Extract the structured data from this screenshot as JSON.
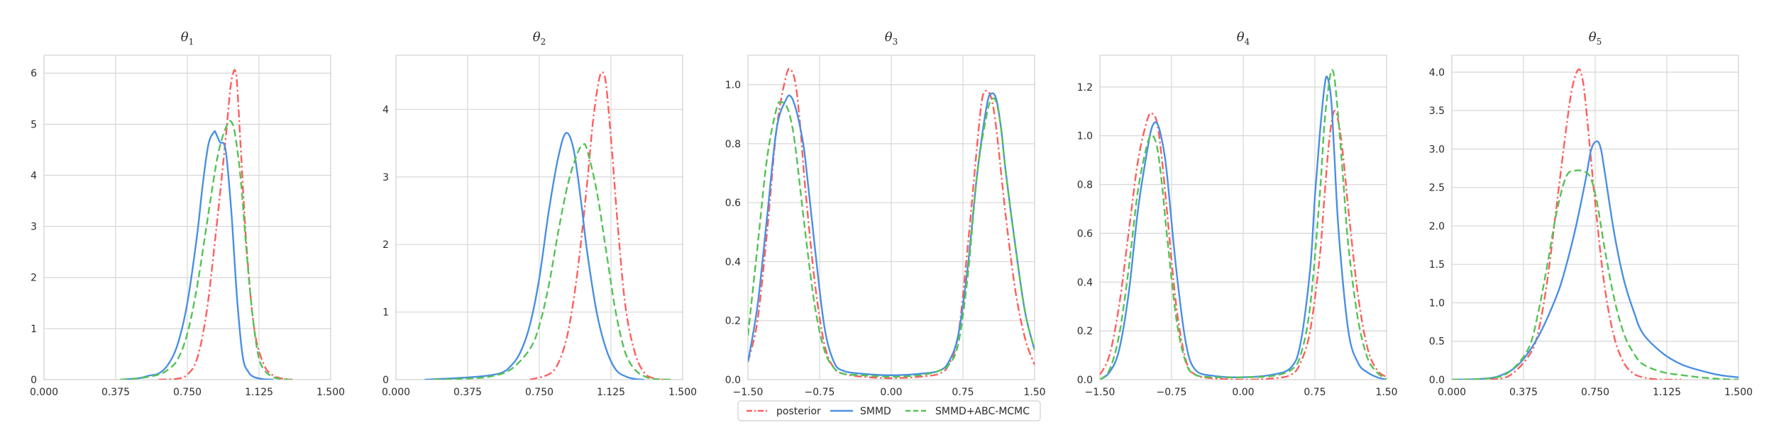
{
  "colors": {
    "posterior": "#ff5e5e",
    "SMMD": "#4a8fe3",
    "SMMD+ABC-MCMC": "#55c255"
  },
  "legend": {
    "placement": "bottom-center",
    "items": [
      {
        "label": "posterior",
        "style": "dash-dot",
        "color_key": "posterior"
      },
      {
        "label": "SMMD",
        "style": "solid",
        "color_key": "SMMD"
      },
      {
        "label": "SMMD+ABC-MCMC",
        "style": "dashed",
        "color_key": "SMMD+ABC-MCMC"
      }
    ]
  },
  "chart_data": [
    {
      "type": "line",
      "title_base": "θ",
      "title_sub": "1",
      "xlim": [
        0.0,
        1.5
      ],
      "ylim": [
        0,
        6.35
      ],
      "xticks": [
        0.0,
        0.375,
        0.75,
        1.125,
        1.5
      ],
      "xtick_labels": [
        "0.000",
        "0.375",
        "0.750",
        "1.125",
        "1.500"
      ],
      "yticks": [
        0,
        1,
        2,
        3,
        4,
        5,
        6
      ],
      "ytick_labels": [
        "0",
        "1",
        "2",
        "3",
        "4",
        "5",
        "6"
      ],
      "grid": true,
      "series": [
        {
          "name": "posterior",
          "style": "dash-dot",
          "color_key": "posterior",
          "x": [
            0.6,
            0.7,
            0.75,
            0.8,
            0.85,
            0.9,
            0.95,
            0.975,
            0.99,
            1.0,
            1.01,
            1.03,
            1.06,
            1.1,
            1.15,
            1.2,
            1.25,
            1.3
          ],
          "y": [
            0.0,
            0.02,
            0.1,
            0.4,
            1.3,
            2.9,
            4.7,
            5.7,
            6.0,
            6.05,
            5.8,
            4.5,
            2.6,
            1.0,
            0.3,
            0.08,
            0.02,
            0.0
          ]
        },
        {
          "name": "SMMD",
          "style": "solid",
          "color_key": "SMMD",
          "x": [
            0.4,
            0.5,
            0.55,
            0.6,
            0.65,
            0.7,
            0.75,
            0.8,
            0.83,
            0.86,
            0.89,
            0.9,
            0.92,
            0.95,
            0.98,
            1.01,
            1.04,
            1.07,
            1.1,
            1.15,
            1.2
          ],
          "y": [
            0.0,
            0.03,
            0.08,
            0.12,
            0.3,
            0.7,
            1.5,
            2.8,
            3.8,
            4.6,
            4.85,
            4.82,
            4.65,
            4.5,
            3.3,
            1.6,
            0.45,
            0.15,
            0.05,
            0.01,
            0.0
          ]
        },
        {
          "name": "SMMD+ABC-MCMC",
          "style": "dashed",
          "color_key": "SMMD+ABC-MCMC",
          "x": [
            0.4,
            0.5,
            0.6,
            0.65,
            0.7,
            0.75,
            0.8,
            0.85,
            0.9,
            0.93,
            0.96,
            0.98,
            1.0,
            1.03,
            1.06,
            1.09,
            1.12,
            1.15,
            1.2,
            1.25,
            1.3
          ],
          "y": [
            0.0,
            0.03,
            0.1,
            0.2,
            0.4,
            0.9,
            1.8,
            3.0,
            4.2,
            4.7,
            5.0,
            5.05,
            4.8,
            3.9,
            2.5,
            1.3,
            0.5,
            0.2,
            0.05,
            0.01,
            0.0
          ]
        }
      ]
    },
    {
      "type": "line",
      "title_base": "θ",
      "title_sub": "2",
      "xlim": [
        0.0,
        1.5
      ],
      "ylim": [
        0,
        4.8
      ],
      "xticks": [
        0.0,
        0.375,
        0.75,
        1.125,
        1.5
      ],
      "xtick_labels": [
        "0.000",
        "0.375",
        "0.750",
        "1.125",
        "1.500"
      ],
      "yticks": [
        0,
        1,
        2,
        3,
        4
      ],
      "ytick_labels": [
        "0",
        "1",
        "2",
        "3",
        "4"
      ],
      "grid": true,
      "series": [
        {
          "name": "posterior",
          "style": "dash-dot",
          "color_key": "posterior",
          "x": [
            0.7,
            0.8,
            0.85,
            0.9,
            0.95,
            1.0,
            1.03,
            1.06,
            1.08,
            1.1,
            1.13,
            1.16,
            1.2,
            1.25,
            1.3,
            1.35,
            1.4
          ],
          "y": [
            0.0,
            0.08,
            0.25,
            0.7,
            1.6,
            2.9,
            3.8,
            4.4,
            4.55,
            4.35,
            3.4,
            2.3,
            1.1,
            0.4,
            0.1,
            0.02,
            0.0
          ]
        },
        {
          "name": "SMMD",
          "style": "solid",
          "color_key": "SMMD",
          "x": [
            0.15,
            0.3,
            0.45,
            0.55,
            0.6,
            0.65,
            0.7,
            0.75,
            0.8,
            0.85,
            0.89,
            0.93,
            0.97,
            1.0,
            1.05,
            1.1,
            1.15,
            1.2,
            1.25,
            1.3
          ],
          "y": [
            0.0,
            0.02,
            0.05,
            0.1,
            0.2,
            0.4,
            0.8,
            1.5,
            2.5,
            3.3,
            3.65,
            3.4,
            2.6,
            1.9,
            1.0,
            0.45,
            0.15,
            0.05,
            0.01,
            0.0
          ]
        },
        {
          "name": "SMMD+ABC-MCMC",
          "style": "dashed",
          "color_key": "SMMD+ABC-MCMC",
          "x": [
            0.2,
            0.4,
            0.5,
            0.6,
            0.7,
            0.75,
            0.8,
            0.85,
            0.9,
            0.95,
            0.98,
            1.0,
            1.05,
            1.1,
            1.15,
            1.2,
            1.25,
            1.3,
            1.35,
            1.45
          ],
          "y": [
            0.0,
            0.02,
            0.05,
            0.15,
            0.45,
            0.8,
            1.4,
            2.2,
            2.9,
            3.35,
            3.48,
            3.4,
            2.8,
            1.9,
            1.0,
            0.4,
            0.15,
            0.05,
            0.01,
            0.0
          ]
        }
      ]
    },
    {
      "type": "line",
      "title_base": "θ",
      "title_sub": "3",
      "xlim": [
        -1.5,
        1.5
      ],
      "ylim": [
        0,
        1.1
      ],
      "xticks": [
        -1.5,
        -0.75,
        0.0,
        0.75,
        1.5
      ],
      "xtick_labels": [
        "−1.50",
        "−0.75",
        "0.00",
        "0.75",
        "1.50"
      ],
      "yticks": [
        0.0,
        0.2,
        0.4,
        0.6,
        0.8,
        1.0
      ],
      "ytick_labels": [
        "0.0",
        "0.2",
        "0.4",
        "0.6",
        "0.8",
        "1.0"
      ],
      "grid": true,
      "series": [
        {
          "name": "posterior",
          "style": "dash-dot",
          "color_key": "posterior",
          "x": [
            -1.5,
            -1.4,
            -1.3,
            -1.2,
            -1.1,
            -1.05,
            -1.0,
            -0.95,
            -0.9,
            -0.8,
            -0.7,
            -0.6,
            -0.5,
            -0.3,
            0.0,
            0.3,
            0.5,
            0.6,
            0.7,
            0.8,
            0.9,
            0.95,
            1.0,
            1.05,
            1.1,
            1.2,
            1.3,
            1.4,
            1.5
          ],
          "y": [
            0.06,
            0.2,
            0.5,
            0.85,
            1.03,
            1.05,
            1.0,
            0.85,
            0.65,
            0.33,
            0.12,
            0.04,
            0.02,
            0.01,
            0.005,
            0.01,
            0.02,
            0.05,
            0.15,
            0.45,
            0.8,
            0.95,
            0.98,
            0.95,
            0.85,
            0.55,
            0.3,
            0.14,
            0.05
          ]
        },
        {
          "name": "SMMD",
          "style": "solid",
          "color_key": "SMMD",
          "x": [
            -1.5,
            -1.4,
            -1.3,
            -1.2,
            -1.1,
            -1.05,
            -1.0,
            -0.95,
            -0.9,
            -0.8,
            -0.7,
            -0.6,
            -0.5,
            -0.3,
            0.0,
            0.3,
            0.5,
            0.6,
            0.7,
            0.8,
            0.9,
            1.0,
            1.05,
            1.1,
            1.15,
            1.2,
            1.3,
            1.4,
            1.5
          ],
          "y": [
            0.06,
            0.25,
            0.55,
            0.85,
            0.95,
            0.96,
            0.92,
            0.85,
            0.75,
            0.45,
            0.18,
            0.06,
            0.03,
            0.02,
            0.015,
            0.02,
            0.03,
            0.06,
            0.15,
            0.38,
            0.7,
            0.93,
            0.97,
            0.95,
            0.85,
            0.7,
            0.45,
            0.23,
            0.1
          ]
        },
        {
          "name": "SMMD+ABC-MCMC",
          "style": "dashed",
          "color_key": "SMMD+ABC-MCMC",
          "x": [
            -1.5,
            -1.4,
            -1.3,
            -1.2,
            -1.15,
            -1.1,
            -1.05,
            -1.0,
            -0.9,
            -0.8,
            -0.7,
            -0.6,
            -0.5,
            -0.3,
            0.0,
            0.3,
            0.5,
            0.6,
            0.7,
            0.8,
            0.9,
            1.0,
            1.05,
            1.1,
            1.15,
            1.2,
            1.3,
            1.4,
            1.5
          ],
          "y": [
            0.15,
            0.45,
            0.75,
            0.92,
            0.94,
            0.93,
            0.88,
            0.78,
            0.5,
            0.25,
            0.1,
            0.04,
            0.02,
            0.015,
            0.01,
            0.015,
            0.03,
            0.05,
            0.12,
            0.35,
            0.7,
            0.9,
            0.95,
            0.94,
            0.85,
            0.7,
            0.45,
            0.23,
            0.1
          ]
        }
      ]
    },
    {
      "type": "line",
      "title_base": "θ",
      "title_sub": "4",
      "xlim": [
        -1.5,
        1.5
      ],
      "ylim": [
        0,
        1.33
      ],
      "xticks": [
        -1.5,
        -0.75,
        0.0,
        0.75,
        1.5
      ],
      "xtick_labels": [
        "−1.50",
        "−0.75",
        "0.00",
        "0.75",
        "1.50"
      ],
      "yticks": [
        0.0,
        0.2,
        0.4,
        0.6,
        0.8,
        1.0,
        1.2
      ],
      "ytick_labels": [
        "0.0",
        "0.2",
        "0.4",
        "0.6",
        "0.8",
        "1.0",
        "1.2"
      ],
      "grid": true,
      "series": [
        {
          "name": "posterior",
          "style": "dash-dot",
          "color_key": "posterior",
          "x": [
            -1.5,
            -1.4,
            -1.3,
            -1.2,
            -1.1,
            -1.0,
            -0.95,
            -0.9,
            -0.85,
            -0.8,
            -0.7,
            -0.6,
            -0.5,
            -0.3,
            0.0,
            0.3,
            0.5,
            0.6,
            0.7,
            0.8,
            0.85,
            0.9,
            0.95,
            1.0,
            1.05,
            1.1,
            1.2,
            1.3,
            1.4,
            1.5
          ],
          "y": [
            0.02,
            0.1,
            0.3,
            0.6,
            0.9,
            1.07,
            1.09,
            1.05,
            0.9,
            0.7,
            0.3,
            0.08,
            0.02,
            0.005,
            0.0,
            0.005,
            0.02,
            0.07,
            0.2,
            0.5,
            0.75,
            0.98,
            1.1,
            1.05,
            0.9,
            0.7,
            0.35,
            0.13,
            0.04,
            0.01
          ]
        },
        {
          "name": "SMMD",
          "style": "solid",
          "color_key": "SMMD",
          "x": [
            -1.5,
            -1.4,
            -1.3,
            -1.2,
            -1.1,
            -1.0,
            -0.95,
            -0.9,
            -0.85,
            -0.8,
            -0.7,
            -0.6,
            -0.5,
            -0.3,
            0.0,
            0.3,
            0.5,
            0.6,
            0.7,
            0.75,
            0.8,
            0.85,
            0.88,
            0.92,
            0.95,
            1.0,
            1.1,
            1.2,
            1.3,
            1.4,
            1.5
          ],
          "y": [
            0.0,
            0.03,
            0.12,
            0.35,
            0.7,
            0.95,
            1.04,
            1.05,
            0.98,
            0.85,
            0.45,
            0.15,
            0.04,
            0.015,
            0.01,
            0.02,
            0.05,
            0.15,
            0.45,
            0.75,
            1.0,
            1.2,
            1.24,
            1.15,
            0.95,
            0.6,
            0.2,
            0.07,
            0.03,
            0.01,
            0.0
          ]
        },
        {
          "name": "SMMD+ABC-MCMC",
          "style": "dashed",
          "color_key": "SMMD+ABC-MCMC",
          "x": [
            -1.5,
            -1.4,
            -1.3,
            -1.2,
            -1.1,
            -1.0,
            -0.95,
            -0.9,
            -0.85,
            -0.8,
            -0.7,
            -0.6,
            -0.5,
            -0.3,
            0.0,
            0.3,
            0.5,
            0.6,
            0.7,
            0.8,
            0.85,
            0.9,
            0.93,
            0.96,
            1.0,
            1.05,
            1.1,
            1.2,
            1.3,
            1.4,
            1.5
          ],
          "y": [
            0.0,
            0.04,
            0.18,
            0.45,
            0.78,
            0.97,
            1.0,
            0.95,
            0.8,
            0.6,
            0.25,
            0.07,
            0.02,
            0.01,
            0.01,
            0.015,
            0.04,
            0.1,
            0.3,
            0.75,
            1.05,
            1.22,
            1.27,
            1.22,
            1.05,
            0.8,
            0.55,
            0.25,
            0.09,
            0.03,
            0.0
          ]
        }
      ]
    },
    {
      "type": "line",
      "title_base": "θ",
      "title_sub": "5",
      "xlim": [
        0.0,
        1.5
      ],
      "ylim": [
        0,
        4.22
      ],
      "xticks": [
        0.0,
        0.375,
        0.75,
        1.125,
        1.5
      ],
      "xtick_labels": [
        "0.000",
        "0.375",
        "0.750",
        "1.125",
        "1.500"
      ],
      "yticks": [
        0.0,
        0.5,
        1.0,
        1.5,
        2.0,
        2.5,
        3.0,
        3.5,
        4.0
      ],
      "ytick_labels": [
        "0.0",
        "0.5",
        "1.0",
        "1.5",
        "2.0",
        "2.5",
        "3.0",
        "3.5",
        "4.0"
      ],
      "grid": true,
      "series": [
        {
          "name": "posterior",
          "style": "dash-dot",
          "color_key": "posterior",
          "x": [
            0.2,
            0.3,
            0.4,
            0.45,
            0.5,
            0.55,
            0.6,
            0.63,
            0.66,
            0.68,
            0.7,
            0.75,
            0.8,
            0.85,
            0.9,
            0.95,
            1.0,
            1.05,
            1.1,
            1.2
          ],
          "y": [
            0.0,
            0.05,
            0.3,
            0.6,
            1.3,
            2.3,
            3.3,
            3.8,
            4.03,
            3.95,
            3.6,
            2.3,
            1.2,
            0.55,
            0.22,
            0.08,
            0.03,
            0.01,
            0.0,
            0.0
          ]
        },
        {
          "name": "SMMD",
          "style": "solid",
          "color_key": "SMMD",
          "x": [
            0.0,
            0.15,
            0.25,
            0.35,
            0.45,
            0.55,
            0.6,
            0.65,
            0.7,
            0.73,
            0.76,
            0.78,
            0.8,
            0.85,
            0.9,
            0.95,
            1.0,
            1.1,
            1.2,
            1.3,
            1.4,
            1.5
          ],
          "y": [
            0.0,
            0.01,
            0.05,
            0.2,
            0.55,
            1.1,
            1.5,
            2.0,
            2.6,
            3.0,
            3.1,
            3.0,
            2.7,
            1.9,
            1.3,
            0.9,
            0.6,
            0.35,
            0.2,
            0.12,
            0.06,
            0.03
          ]
        },
        {
          "name": "SMMD+ABC-MCMC",
          "style": "dashed",
          "color_key": "SMMD+ABC-MCMC",
          "x": [
            0.0,
            0.2,
            0.3,
            0.4,
            0.45,
            0.5,
            0.55,
            0.6,
            0.65,
            0.7,
            0.73,
            0.76,
            0.8,
            0.85,
            0.9,
            0.95,
            1.0,
            1.1,
            1.2,
            1.3,
            1.4,
            1.5
          ],
          "y": [
            0.0,
            0.02,
            0.1,
            0.4,
            0.85,
            1.5,
            2.2,
            2.65,
            2.72,
            2.7,
            2.6,
            2.3,
            1.7,
            1.05,
            0.6,
            0.35,
            0.2,
            0.1,
            0.06,
            0.03,
            0.01,
            0.0
          ]
        }
      ]
    }
  ]
}
